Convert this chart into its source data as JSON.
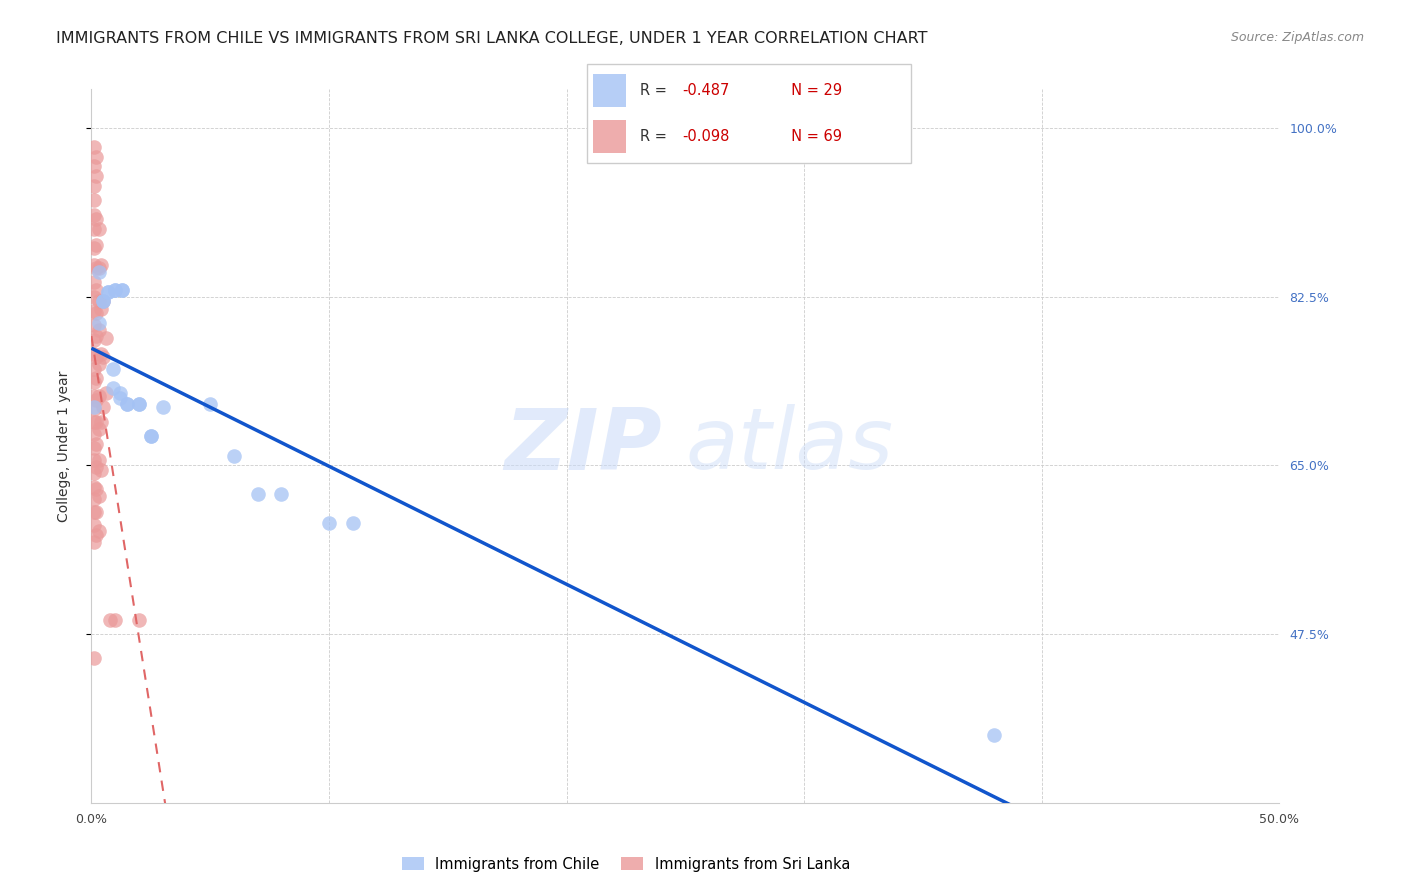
{
  "title": "IMMIGRANTS FROM CHILE VS IMMIGRANTS FROM SRI LANKA COLLEGE, UNDER 1 YEAR CORRELATION CHART",
  "source": "Source: ZipAtlas.com",
  "ylabel": "College, Under 1 year",
  "chile_color": "#a4c2f4",
  "srilanka_color": "#ea9999",
  "chile_line_color": "#1155cc",
  "srilanka_line_color": "#e06666",
  "xlim": [
    0.0,
    0.5
  ],
  "ylim": [
    0.3,
    1.04
  ],
  "yticks": [
    0.475,
    0.65,
    0.825,
    1.0
  ],
  "right_labels": [
    "100.0%",
    "82.5%",
    "65.0%",
    "47.5%"
  ],
  "xtick_pos": [
    0.0,
    0.1,
    0.2,
    0.3,
    0.4,
    0.5
  ],
  "xtick_labels": [
    "0.0%",
    "",
    "",
    "",
    "",
    "50.0%"
  ],
  "chile_points": [
    [
      0.001,
      0.71
    ],
    [
      0.003,
      0.85
    ],
    [
      0.003,
      0.798
    ],
    [
      0.005,
      0.82
    ],
    [
      0.005,
      0.82
    ],
    [
      0.007,
      0.83
    ],
    [
      0.007,
      0.83
    ],
    [
      0.009,
      0.73
    ],
    [
      0.009,
      0.75
    ],
    [
      0.01,
      0.832
    ],
    [
      0.01,
      0.832
    ],
    [
      0.012,
      0.725
    ],
    [
      0.012,
      0.72
    ],
    [
      0.013,
      0.832
    ],
    [
      0.013,
      0.832
    ],
    [
      0.015,
      0.714
    ],
    [
      0.015,
      0.714
    ],
    [
      0.02,
      0.714
    ],
    [
      0.02,
      0.714
    ],
    [
      0.025,
      0.68
    ],
    [
      0.025,
      0.68
    ],
    [
      0.03,
      0.71
    ],
    [
      0.05,
      0.714
    ],
    [
      0.06,
      0.66
    ],
    [
      0.07,
      0.62
    ],
    [
      0.08,
      0.62
    ],
    [
      0.1,
      0.59
    ],
    [
      0.11,
      0.59
    ],
    [
      0.38,
      0.37
    ]
  ],
  "srilanka_points": [
    [
      0.001,
      0.98
    ],
    [
      0.001,
      0.96
    ],
    [
      0.001,
      0.94
    ],
    [
      0.001,
      0.925
    ],
    [
      0.001,
      0.91
    ],
    [
      0.001,
      0.895
    ],
    [
      0.001,
      0.875
    ],
    [
      0.001,
      0.858
    ],
    [
      0.001,
      0.84
    ],
    [
      0.001,
      0.825
    ],
    [
      0.001,
      0.81
    ],
    [
      0.001,
      0.795
    ],
    [
      0.001,
      0.78
    ],
    [
      0.001,
      0.765
    ],
    [
      0.001,
      0.75
    ],
    [
      0.001,
      0.736
    ],
    [
      0.001,
      0.722
    ],
    [
      0.001,
      0.708
    ],
    [
      0.001,
      0.695
    ],
    [
      0.001,
      0.682
    ],
    [
      0.001,
      0.668
    ],
    [
      0.001,
      0.655
    ],
    [
      0.001,
      0.642
    ],
    [
      0.001,
      0.628
    ],
    [
      0.001,
      0.615
    ],
    [
      0.001,
      0.602
    ],
    [
      0.001,
      0.588
    ],
    [
      0.001,
      0.57
    ],
    [
      0.001,
      0.45
    ],
    [
      0.002,
      0.97
    ],
    [
      0.002,
      0.95
    ],
    [
      0.002,
      0.905
    ],
    [
      0.002,
      0.878
    ],
    [
      0.002,
      0.855
    ],
    [
      0.002,
      0.832
    ],
    [
      0.002,
      0.808
    ],
    [
      0.002,
      0.784
    ],
    [
      0.002,
      0.762
    ],
    [
      0.002,
      0.74
    ],
    [
      0.002,
      0.718
    ],
    [
      0.002,
      0.695
    ],
    [
      0.002,
      0.672
    ],
    [
      0.002,
      0.648
    ],
    [
      0.002,
      0.625
    ],
    [
      0.002,
      0.602
    ],
    [
      0.002,
      0.578
    ],
    [
      0.003,
      0.895
    ],
    [
      0.003,
      0.855
    ],
    [
      0.003,
      0.82
    ],
    [
      0.003,
      0.79
    ],
    [
      0.003,
      0.755
    ],
    [
      0.003,
      0.722
    ],
    [
      0.003,
      0.688
    ],
    [
      0.003,
      0.655
    ],
    [
      0.003,
      0.618
    ],
    [
      0.003,
      0.582
    ],
    [
      0.004,
      0.858
    ],
    [
      0.004,
      0.812
    ],
    [
      0.004,
      0.765
    ],
    [
      0.004,
      0.695
    ],
    [
      0.004,
      0.645
    ],
    [
      0.005,
      0.82
    ],
    [
      0.005,
      0.762
    ],
    [
      0.005,
      0.71
    ],
    [
      0.006,
      0.782
    ],
    [
      0.006,
      0.725
    ],
    [
      0.008,
      0.49
    ],
    [
      0.01,
      0.49
    ],
    [
      0.02,
      0.49
    ]
  ],
  "legend_chile_r": "-0.487",
  "legend_chile_n": "29",
  "legend_srilanka_r": "-0.098",
  "legend_srilanka_n": "69",
  "title_fontsize": 11.5,
  "source_fontsize": 9,
  "axis_label_fontsize": 10,
  "tick_fontsize": 9,
  "legend_fontsize": 10.5
}
